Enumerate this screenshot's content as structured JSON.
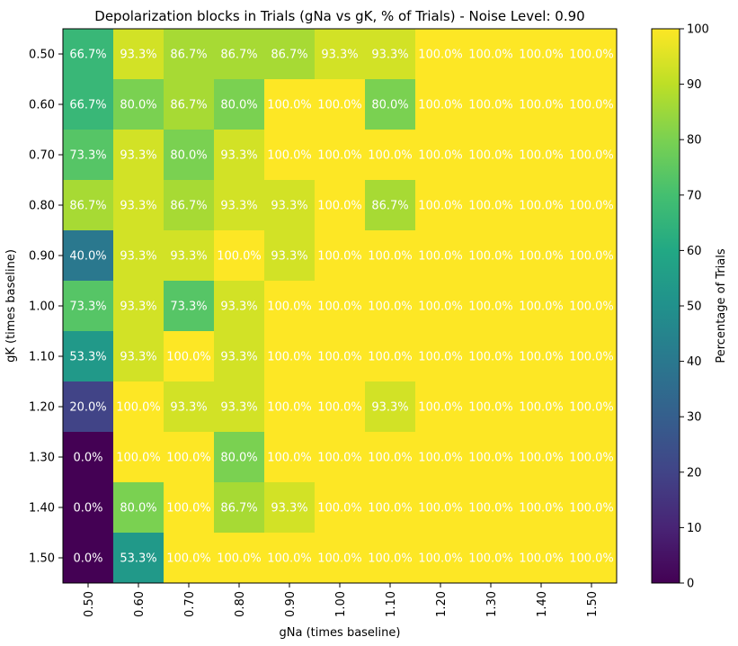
{
  "chart_data": {
    "type": "heatmap",
    "title": "Depolarization blocks in Trials (gNa vs gK, % of Trials) - Noise Level: 0.90",
    "xlabel": "gNa (times baseline)",
    "ylabel": "gK (times baseline)",
    "x_categories": [
      "0.50",
      "0.60",
      "0.70",
      "0.80",
      "0.90",
      "1.00",
      "1.10",
      "1.20",
      "1.30",
      "1.40",
      "1.50"
    ],
    "y_categories": [
      "0.50",
      "0.60",
      "0.70",
      "0.80",
      "0.90",
      "1.00",
      "1.10",
      "1.20",
      "1.30",
      "1.40",
      "1.50"
    ],
    "values": [
      [
        66.7,
        93.3,
        86.7,
        86.7,
        86.7,
        93.3,
        93.3,
        100.0,
        100.0,
        100.0,
        100.0
      ],
      [
        66.7,
        80.0,
        86.7,
        80.0,
        100.0,
        100.0,
        80.0,
        100.0,
        100.0,
        100.0,
        100.0
      ],
      [
        73.3,
        93.3,
        80.0,
        93.3,
        100.0,
        100.0,
        100.0,
        100.0,
        100.0,
        100.0,
        100.0
      ],
      [
        86.7,
        93.3,
        86.7,
        93.3,
        93.3,
        100.0,
        86.7,
        100.0,
        100.0,
        100.0,
        100.0
      ],
      [
        40.0,
        93.3,
        93.3,
        100.0,
        93.3,
        100.0,
        100.0,
        100.0,
        100.0,
        100.0,
        100.0
      ],
      [
        73.3,
        93.3,
        73.3,
        93.3,
        100.0,
        100.0,
        100.0,
        100.0,
        100.0,
        100.0,
        100.0
      ],
      [
        53.3,
        93.3,
        100.0,
        93.3,
        100.0,
        100.0,
        100.0,
        100.0,
        100.0,
        100.0,
        100.0
      ],
      [
        20.0,
        100.0,
        93.3,
        93.3,
        100.0,
        100.0,
        93.3,
        100.0,
        100.0,
        100.0,
        100.0
      ],
      [
        0.0,
        100.0,
        100.0,
        80.0,
        100.0,
        100.0,
        100.0,
        100.0,
        100.0,
        100.0,
        100.0
      ],
      [
        0.0,
        80.0,
        100.0,
        86.7,
        93.3,
        100.0,
        100.0,
        100.0,
        100.0,
        100.0,
        100.0
      ],
      [
        0.0,
        53.3,
        100.0,
        100.0,
        100.0,
        100.0,
        100.0,
        100.0,
        100.0,
        100.0,
        100.0
      ]
    ],
    "colormap": "viridis",
    "vmin": 0,
    "vmax": 100,
    "colorbar": {
      "label": "Percentage of Trials",
      "ticks": [
        "0",
        "10",
        "20",
        "30",
        "40",
        "50",
        "60",
        "70",
        "80",
        "90",
        "100"
      ]
    },
    "value_format": "{v}%",
    "label_color": "#ffffff",
    "grid": false,
    "legend": "none"
  }
}
